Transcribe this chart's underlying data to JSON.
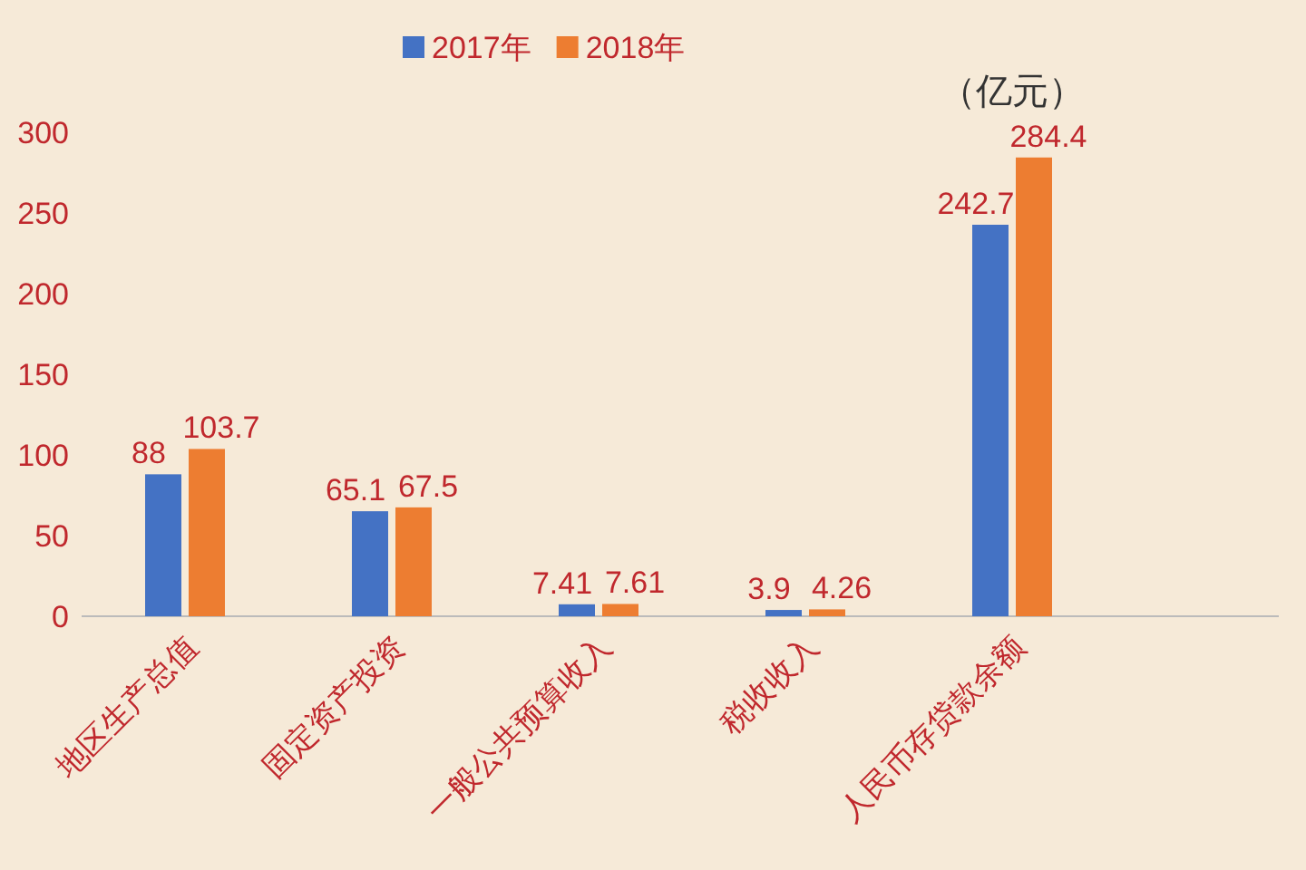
{
  "chart_data": {
    "type": "bar",
    "categories": [
      "地区生产总值",
      "固定资产投资",
      "一般公共预算收入",
      "税收收入",
      "人民币存贷款余额"
    ],
    "series": [
      {
        "name": "2017年",
        "color": "#4472c4",
        "values": [
          88,
          65.1,
          7.41,
          3.9,
          242.7
        ]
      },
      {
        "name": "2018年",
        "color": "#ed7d31",
        "values": [
          103.7,
          67.5,
          7.61,
          4.26,
          284.4
        ]
      }
    ],
    "ylim": [
      0,
      300
    ],
    "yticks": [
      0,
      50,
      100,
      150,
      200,
      250,
      300
    ],
    "grid": false,
    "legend": "top",
    "data_labels": true,
    "annotations": [
      "（亿元）"
    ]
  }
}
